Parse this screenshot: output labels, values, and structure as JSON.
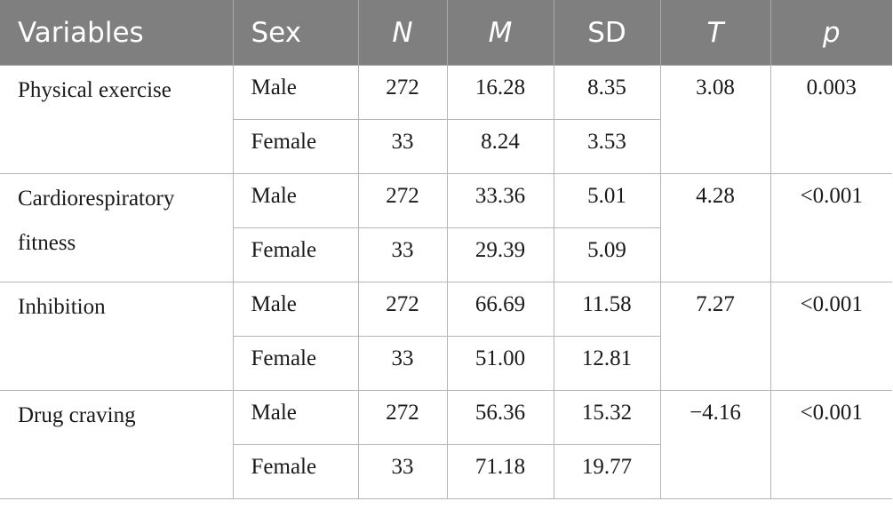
{
  "table": {
    "headers": [
      {
        "label": "Variables"
      },
      {
        "label": "Sex"
      },
      {
        "label": "N"
      },
      {
        "label": "M"
      },
      {
        "label": "SD"
      },
      {
        "label": "T"
      },
      {
        "label": "p"
      }
    ],
    "groups": [
      {
        "variable": "Physical exercise",
        "t": "3.08",
        "p": "0.003",
        "rows": [
          {
            "sex": "Male",
            "n": "272",
            "m": "16.28",
            "sd": "8.35"
          },
          {
            "sex": "Female",
            "n": "33",
            "m": "8.24",
            "sd": "3.53"
          }
        ]
      },
      {
        "variable": "Cardiorespiratory fitness",
        "t": "4.28",
        "p": "<0.001",
        "rows": [
          {
            "sex": "Male",
            "n": "272",
            "m": "33.36",
            "sd": "5.01"
          },
          {
            "sex": "Female",
            "n": "33",
            "m": "29.39",
            "sd": "5.09"
          }
        ]
      },
      {
        "variable": "Inhibition",
        "t": "7.27",
        "p": "<0.001",
        "rows": [
          {
            "sex": "Male",
            "n": "272",
            "m": "66.69",
            "sd": "11.58"
          },
          {
            "sex": "Female",
            "n": "33",
            "m": "51.00",
            "sd": "12.81"
          }
        ]
      },
      {
        "variable": "Drug craving",
        "t": "−4.16",
        "p": "<0.001",
        "rows": [
          {
            "sex": "Male",
            "n": "272",
            "m": "56.36",
            "sd": "15.32"
          },
          {
            "sex": "Female",
            "n": "33",
            "m": "71.18",
            "sd": "19.77"
          }
        ]
      }
    ]
  }
}
